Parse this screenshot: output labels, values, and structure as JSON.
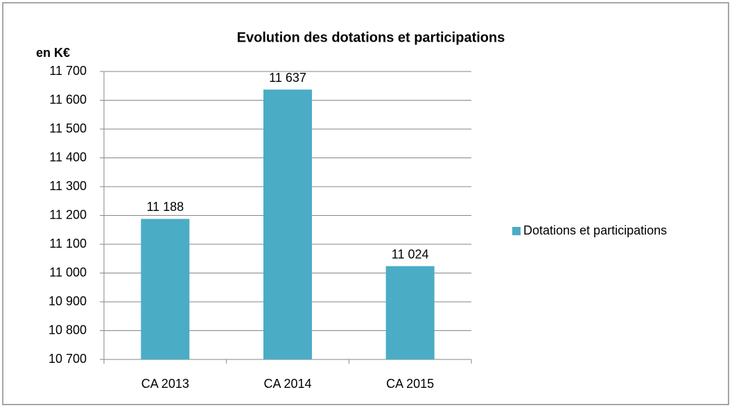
{
  "chart_data": {
    "type": "bar",
    "title": "Evolution des dotations et participations",
    "y_label": "en K€",
    "categories": [
      "CA 2013",
      "CA 2014",
      "CA 2015"
    ],
    "series": [
      {
        "name": "Dotations et participations",
        "color": "#4bacc6",
        "values": [
          11188,
          11637,
          11024
        ],
        "value_labels": [
          "11 188",
          "11 637",
          "11 024"
        ]
      }
    ],
    "ylim": [
      10700,
      11700
    ],
    "yticks": [
      {
        "value": 10700,
        "label": "10 700"
      },
      {
        "value": 10800,
        "label": "10 800"
      },
      {
        "value": 10900,
        "label": "10 900"
      },
      {
        "value": 11000,
        "label": "11 000"
      },
      {
        "value": 11100,
        "label": "11 100"
      },
      {
        "value": 11200,
        "label": "11 200"
      },
      {
        "value": 11300,
        "label": "11 300"
      },
      {
        "value": 11400,
        "label": "11 400"
      },
      {
        "value": 11500,
        "label": "11 500"
      },
      {
        "value": 11600,
        "label": "11 600"
      },
      {
        "value": 11700,
        "label": "11 700"
      }
    ],
    "grid": true,
    "legend": "right"
  }
}
